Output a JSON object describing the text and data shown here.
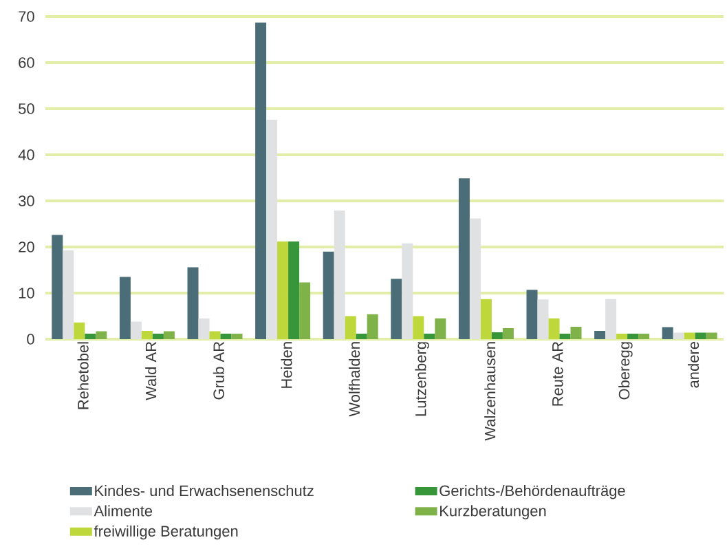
{
  "chart_data": {
    "type": "bar",
    "categories": [
      "Rehetobel",
      "Wald AR",
      "Grub AR",
      "Heiden",
      "Wolfhalden",
      "Lutzenberg",
      "Walzenhausen",
      "Reute AR",
      "Oberegg",
      "andere"
    ],
    "series": [
      {
        "name": "Kindes- und Erwachsenenschutz",
        "color": "#4a6d77",
        "values": [
          22.6,
          13.5,
          15.6,
          68.7,
          19.0,
          13.1,
          34.9,
          10.7,
          1.8,
          2.6
        ]
      },
      {
        "name": "Alimente",
        "color": "#e0e1e3",
        "values": [
          19.3,
          3.8,
          4.5,
          47.6,
          27.9,
          20.8,
          26.2,
          8.6,
          8.7,
          1.4
        ]
      },
      {
        "name": "freiwillige Beratungen",
        "color": "#bed73b",
        "values": [
          3.6,
          1.8,
          1.7,
          21.2,
          5.0,
          5.0,
          8.7,
          4.5,
          1.2,
          1.4
        ]
      },
      {
        "name": "Gerichts-/Behördenaufträge",
        "color": "#38963a",
        "values": [
          1.2,
          1.2,
          1.2,
          21.2,
          1.2,
          1.2,
          1.5,
          1.2,
          1.2,
          1.4
        ]
      },
      {
        "name": "Kurzberatungen",
        "color": "#80b24a",
        "values": [
          1.7,
          1.7,
          1.2,
          12.3,
          5.4,
          4.5,
          2.4,
          2.7,
          1.2,
          1.4
        ]
      }
    ],
    "ylim": [
      0,
      70
    ],
    "yticks": [
      0,
      10,
      20,
      30,
      40,
      50,
      60,
      70
    ],
    "grid": "y",
    "legend": "bottom"
  }
}
